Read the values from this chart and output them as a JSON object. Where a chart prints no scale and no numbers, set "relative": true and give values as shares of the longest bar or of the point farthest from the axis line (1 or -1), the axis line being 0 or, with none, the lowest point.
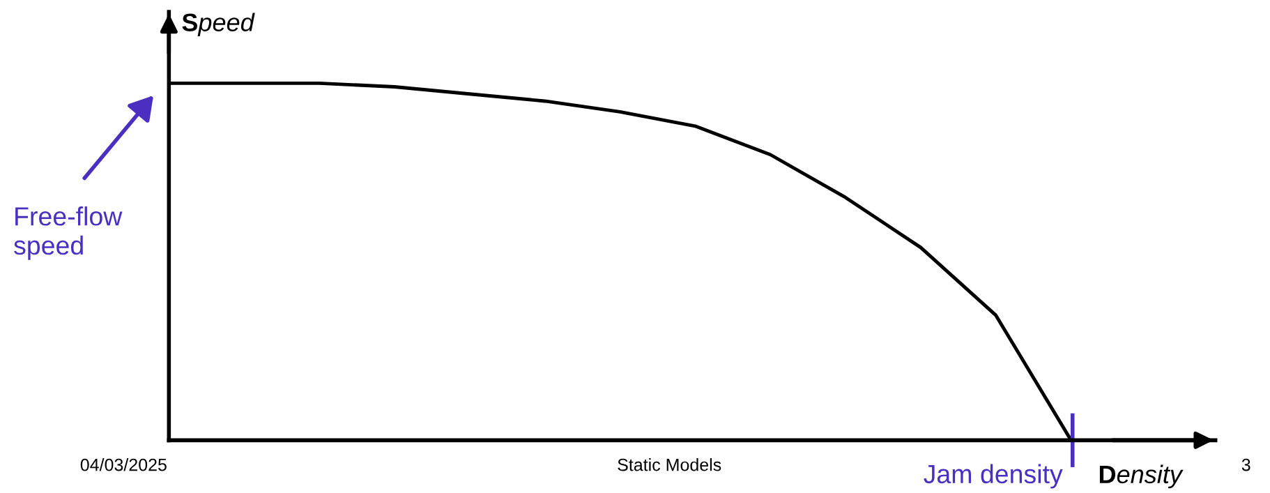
{
  "chart_data": {
    "type": "line",
    "relative": true,
    "xlabel": "Density",
    "ylabel": "Speed",
    "categories": [
      null,
      null,
      null,
      null,
      null,
      null,
      null,
      null,
      null,
      null,
      null,
      null,
      null
    ],
    "series": [
      {
        "color": "#000000",
        "values": [
          1,
          1,
          1,
          0.99,
          0.97,
          0.95,
          0.92,
          0.88,
          0.8,
          0.68,
          0.54,
          0.35,
          0
        ]
      }
    ],
    "annotations": [
      "Free-flow\nspeed",
      "Jam density",
      "04/03/2025",
      "Static Models",
      "3"
    ],
    "legend": false,
    "marker": "none",
    "line_style": "solid"
  }
}
